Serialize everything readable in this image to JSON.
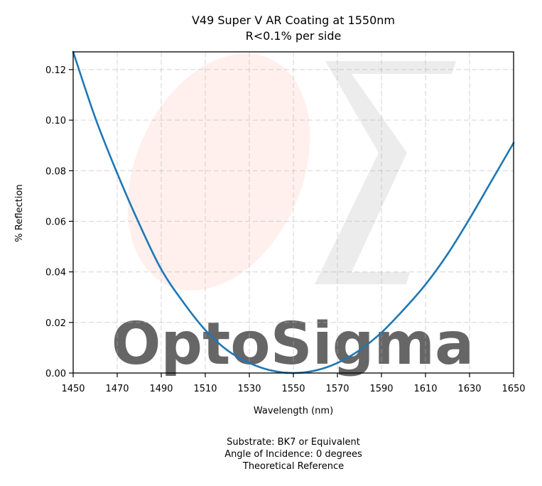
{
  "chart_data": {
    "type": "line",
    "title": "V49 Super V AR Coating at 1550nm",
    "subtitle": "R<0.1% per side",
    "xlabel": "Wavelength (nm)",
    "ylabel": "% Reflection",
    "xlim": [
      1450,
      1650
    ],
    "ylim": [
      0,
      0.127
    ],
    "xticks": [
      "1450",
      "1470",
      "1490",
      "1510",
      "1530",
      "1550",
      "1570",
      "1590",
      "1610",
      "1630",
      "1650"
    ],
    "yticks": [
      "0.00",
      "0.02",
      "0.04",
      "0.06",
      "0.08",
      "0.10",
      "0.12"
    ],
    "grid": true,
    "series": [
      {
        "color": "#1f77b4",
        "x": [
          1450,
          1460,
          1470,
          1480,
          1490,
          1500,
          1510,
          1520,
          1530,
          1540,
          1550,
          1560,
          1570,
          1580,
          1590,
          1600,
          1610,
          1620,
          1630,
          1640,
          1650
        ],
        "y": [
          0.127,
          0.101,
          0.079,
          0.059,
          0.041,
          0.028,
          0.017,
          0.009,
          0.004,
          0.001,
          0.0,
          0.001,
          0.004,
          0.009,
          0.016,
          0.025,
          0.035,
          0.047,
          0.061,
          0.076,
          0.091
        ]
      }
    ],
    "footer": [
      "Substrate: BK7 or Equivalent",
      "Angle of Incidence: 0 degrees",
      "Theoretical Reference"
    ],
    "watermark": "OptoSigma"
  }
}
